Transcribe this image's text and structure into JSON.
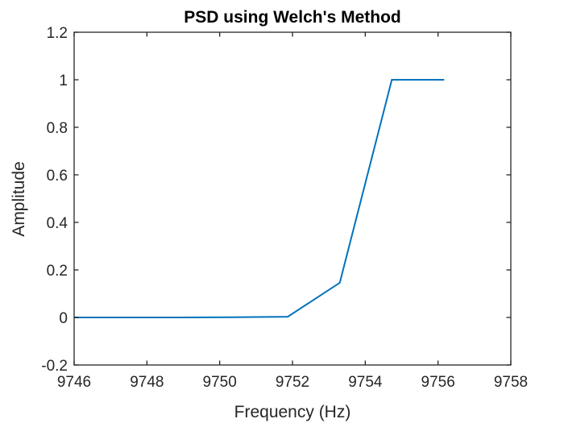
{
  "chart_data": {
    "type": "line",
    "title": "PSD using Welch's Method",
    "xlabel": "Frequency (Hz)",
    "ylabel": "Amplitude",
    "xlim": [
      9746,
      9758
    ],
    "ylim": [
      -0.2,
      1.2
    ],
    "x_ticks": [
      9746,
      9748,
      9750,
      9752,
      9754,
      9756,
      9758
    ],
    "y_ticks": [
      -0.2,
      0,
      0.2,
      0.4,
      0.6,
      0.8,
      1,
      1.2
    ],
    "x_tick_labels": [
      "9746",
      "9748",
      "9750",
      "9752",
      "9754",
      "9756",
      "9758"
    ],
    "y_tick_labels": [
      "-0.2",
      "0",
      "0.2",
      "0.4",
      "0.6",
      "0.8",
      "1",
      "1.2"
    ],
    "grid": false,
    "series": [
      {
        "color": "#0072bd",
        "x": [
          9746.0,
          9747.43,
          9748.87,
          9750.3,
          9751.87,
          9753.3,
          9754.73,
          9756.17
        ],
        "y": [
          0.0,
          0.0,
          0.0,
          0.001,
          0.003,
          0.146,
          1.0,
          1.0
        ]
      }
    ]
  }
}
